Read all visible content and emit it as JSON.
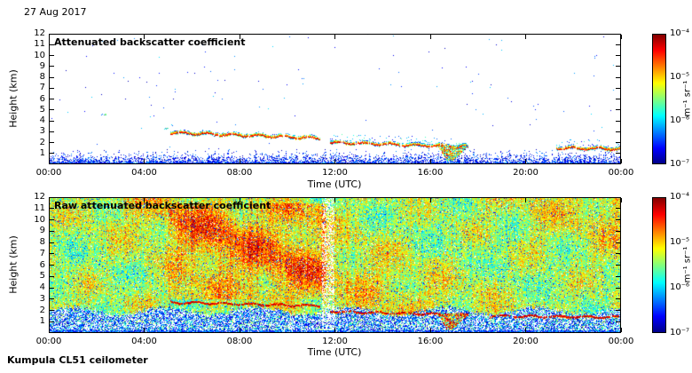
{
  "header": {
    "date": "27 Aug 2017"
  },
  "footer": {
    "instrument": "Kumpula CL51 ceilometer"
  },
  "chart_data": [
    {
      "type": "heatmap",
      "title": "Attenuated backscatter coefficient",
      "xlabel": "Time (UTC)",
      "ylabel": "Height (km)",
      "x_tick_labels": [
        "00:00",
        "04:00",
        "08:00",
        "12:00",
        "16:00",
        "20:00",
        "00:00"
      ],
      "y_tick_labels": [
        "1",
        "2",
        "3",
        "4",
        "5",
        "6",
        "7",
        "8",
        "9",
        "10",
        "11",
        "12"
      ],
      "x_range_hours": [
        0,
        24
      ],
      "y_range_km": [
        0,
        12
      ],
      "background": "white (below detection threshold)",
      "colorbar": {
        "colormap": "jet",
        "scale": "log",
        "unit": "m⁻¹ sr⁻¹",
        "tick_labels": [
          "10⁻⁴",
          "10⁻⁵",
          "10⁻⁶",
          "10⁻⁷"
        ],
        "max": 0.0001,
        "min": 1e-07
      },
      "features": {
        "boundary_layer": {
          "top_km": 1.3,
          "description": "weak blue aerosol speckle below ~1.3 km all day"
        },
        "cloud_layers": [
          {
            "start_hour": 5.1,
            "end_hour": 11.4,
            "base_km_start": 2.9,
            "base_km_end": 2.4,
            "speckle_above": false
          },
          {
            "start_hour": 11.8,
            "end_hour": 17.6,
            "base_km_start": 2.0,
            "base_km_end": 1.6,
            "speckle_above": true
          },
          {
            "start_hour": 21.3,
            "end_hour": 24.0,
            "base_km_start": 1.5,
            "base_km_end": 1.4,
            "speckle_above": true
          }
        ],
        "precipitation": {
          "start_hour": 16.3,
          "end_hour": 17.6,
          "top_km": 1.7,
          "bottom_km": 0.3,
          "description": "rain/virga shaft below cloud, green-yellow-red"
        },
        "isolated_echoes": [
          {
            "hour": 2.3,
            "km": 4.6
          },
          {
            "hour": 4.9,
            "km": 3.3
          }
        ]
      }
    },
    {
      "type": "heatmap",
      "title": "Raw attenuated backscatter coefficient",
      "xlabel": "Time (UTC)",
      "ylabel": "Height (km)",
      "x_tick_labels": [
        "00:00",
        "04:00",
        "08:00",
        "12:00",
        "16:00",
        "20:00",
        "00:00"
      ],
      "y_tick_labels": [
        "1",
        "2",
        "3",
        "4",
        "5",
        "6",
        "7",
        "8",
        "9",
        "10",
        "11",
        "12"
      ],
      "x_range_hours": [
        0,
        24
      ],
      "y_range_km": [
        0,
        12
      ],
      "background": "dense speckle noise",
      "colorbar": {
        "colormap": "jet",
        "scale": "log",
        "unit": "m⁻¹ sr⁻¹",
        "tick_labels": [
          "10⁻⁴",
          "10⁻⁵",
          "10⁻⁶",
          "10⁻⁷"
        ],
        "max": 0.0001,
        "min": 1e-07
      },
      "features": {
        "noise_floor": "dense green/yellow speckle noise above ~2 km",
        "boundary_layer": {
          "top_km": 2.0,
          "description": "white/blue speckle below ~2 km"
        },
        "bright_patch": {
          "start_hour": 5.0,
          "end_hour": 11.6,
          "from_km": 3.0,
          "to_km": 11.5,
          "description": "enhanced orange/red noise region"
        },
        "light_band_hour": 11.7,
        "cloud_layers": [
          {
            "start_hour": 5.1,
            "end_hour": 11.4,
            "base_km_start": 2.7,
            "base_km_end": 2.4
          },
          {
            "start_hour": 11.8,
            "end_hour": 17.6,
            "base_km_start": 1.9,
            "base_km_end": 1.6
          },
          {
            "start_hour": 18.5,
            "end_hour": 24.0,
            "base_km_start": 1.5,
            "base_km_end": 1.4
          }
        ],
        "precipitation": {
          "start_hour": 16.3,
          "end_hour": 17.6,
          "top_km": 1.7,
          "bottom_km": 0.3
        }
      }
    }
  ]
}
